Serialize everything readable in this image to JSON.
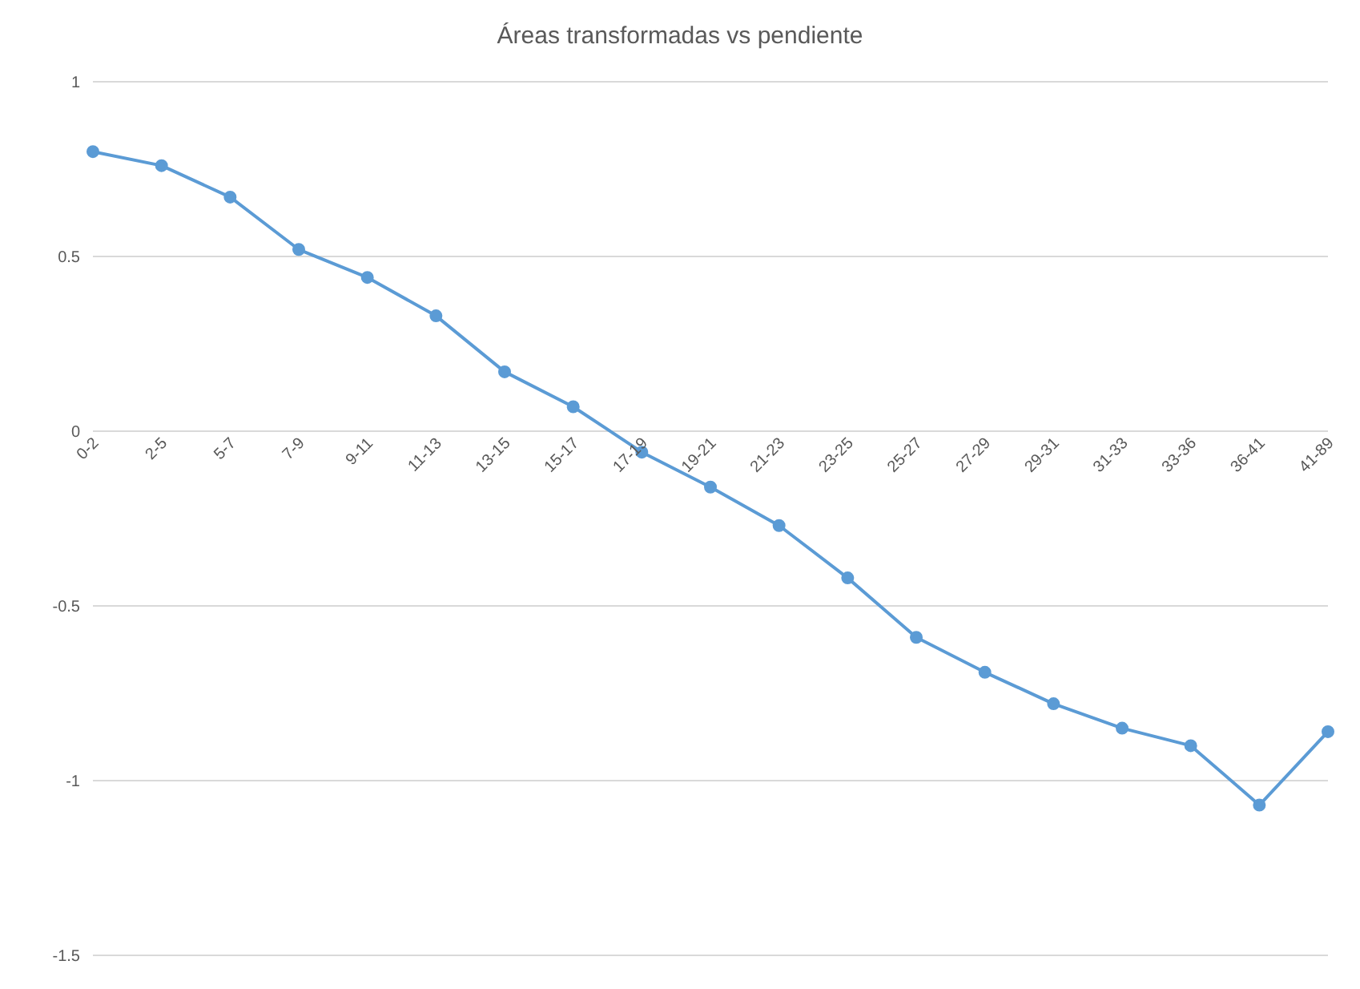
{
  "chart_data": {
    "type": "line",
    "title": "Áreas transformadas vs pendiente",
    "categories": [
      "0-2",
      "2-5",
      "5-7",
      "7-9",
      "9-11",
      "11-13",
      "13-15",
      "15-17",
      "17-19",
      "19-21",
      "21-23",
      "23-25",
      "25-27",
      "27-29",
      "29-31",
      "31-33",
      "33-36",
      "36-41",
      "41-89"
    ],
    "values": [
      0.8,
      0.76,
      0.67,
      0.52,
      0.44,
      0.33,
      0.17,
      0.07,
      -0.06,
      -0.16,
      -0.27,
      -0.42,
      -0.59,
      -0.69,
      -0.78,
      -0.85,
      -0.9,
      -1.07,
      -0.86
    ],
    "color": "#5b9bd5",
    "marker": "circle",
    "line_style": "solid",
    "grid": "y",
    "ylim": [
      -1.5,
      1
    ],
    "yticks": [
      -1.5,
      -1,
      -0.5,
      0,
      0.5,
      1
    ]
  }
}
